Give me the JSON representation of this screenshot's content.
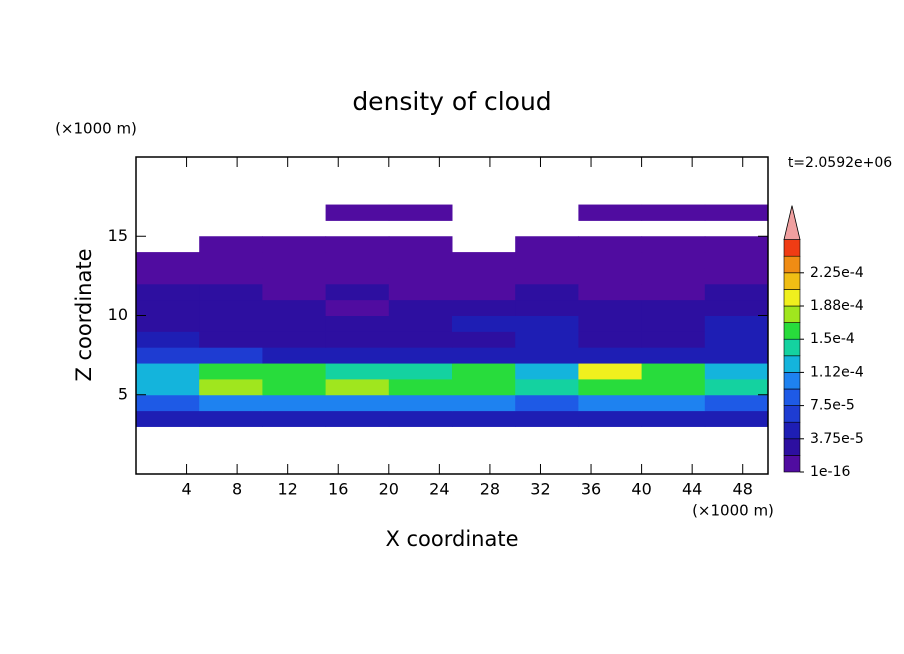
{
  "chart_data": {
    "type": "contour",
    "title": "density of cloud",
    "y_unit_label": "(×1000 m)",
    "x_unit_label": "(×1000 m)",
    "time_label": "t=2.0592e+06",
    "xlabel": "X coordinate",
    "ylabel": "Z coordinate",
    "xlim": [
      0,
      50
    ],
    "ylim": [
      0,
      20
    ],
    "xticks": [
      4,
      8,
      12,
      16,
      20,
      24,
      28,
      32,
      36,
      40,
      44,
      48
    ],
    "yticks": [
      5,
      10,
      15
    ],
    "x": [
      2.5,
      7.5,
      12.5,
      17.5,
      22.5,
      27.5,
      32.5,
      37.5,
      42.5,
      47.5
    ],
    "z": [
      3.5,
      4.5,
      5.5,
      6.5,
      7.5,
      8.5,
      9.5,
      10.5,
      11.5,
      12.5,
      13.5,
      14.5,
      15.5,
      16.5
    ],
    "values": [
      [
        4e-05,
        4e-05,
        4e-05,
        4e-05,
        4e-05,
        4e-05,
        4e-05,
        4e-05,
        4e-05,
        4e-05
      ],
      [
        9e-05,
        0.0001,
        0.0001,
        0.0001,
        0.0001,
        0.0001,
        9e-05,
        0.0001,
        0.0001,
        9e-05
      ],
      [
        0.00012,
        0.00017,
        0.00016,
        0.00017,
        0.00015,
        0.00016,
        0.00014,
        0.00016,
        0.00015,
        0.00014
      ],
      [
        0.00012,
        0.00015,
        0.00016,
        0.00014,
        0.00014,
        0.00016,
        0.00013,
        0.00019,
        0.00016,
        0.00013
      ],
      [
        6e-05,
        6e-05,
        4e-05,
        4e-05,
        5e-05,
        4e-05,
        5e-05,
        4e-05,
        4e-05,
        5e-05
      ],
      [
        4e-05,
        3e-05,
        2.5e-05,
        3e-05,
        3e-05,
        3e-05,
        4e-05,
        3e-05,
        3e-05,
        4e-05
      ],
      [
        3e-05,
        3e-05,
        2e-05,
        2e-05,
        2.5e-05,
        4e-05,
        4e-05,
        3e-05,
        3e-05,
        4e-05
      ],
      [
        2.5e-05,
        2e-05,
        2e-05,
        1e-05,
        2e-05,
        2e-05,
        2.5e-05,
        2e-05,
        3e-05,
        3e-05
      ],
      [
        2e-05,
        2e-05,
        8e-06,
        2e-05,
        8e-06,
        8e-06,
        2e-05,
        8e-06,
        1e-05,
        2e-05
      ],
      [
        5e-06,
        5e-06,
        5e-06,
        5e-06,
        5e-06,
        5e-06,
        5e-06,
        5e-06,
        5e-06,
        5e-06
      ],
      [
        5e-06,
        5e-06,
        5e-06,
        5e-06,
        5e-06,
        5e-06,
        5e-06,
        5e-06,
        5e-06,
        5e-06
      ],
      [
        null,
        5e-06,
        5e-06,
        5e-06,
        5e-06,
        null,
        5e-06,
        5e-06,
        5e-06,
        5e-06
      ],
      [
        null,
        null,
        null,
        null,
        null,
        null,
        null,
        null,
        null,
        null
      ],
      [
        null,
        null,
        null,
        5e-06,
        5e-06,
        null,
        null,
        5e-06,
        5e-06,
        5e-06
      ]
    ],
    "levels": [
      1e-16,
      1.875e-05,
      3.75e-05,
      5.625e-05,
      7.5e-05,
      9.375e-05,
      0.0001125,
      0.00013125,
      0.00015,
      0.00016875,
      0.0001875,
      0.00020625,
      0.000225,
      0.00024375
    ],
    "colors": [
      "#500ca0",
      "#2d0fa0",
      "#1e1eb4",
      "#1e3cd2",
      "#1e5ae6",
      "#1e82f0",
      "#14b4dc",
      "#14d2a0",
      "#28dc3c",
      "#a0e61e",
      "#f0f01e",
      "#f0be14",
      "#f08c14",
      "#f03c14"
    ],
    "extend_color": "#f0a0a0",
    "colorbar_ticks": [
      1e-16,
      {
        "value": 3.75e-05,
        "label": "3.75e-5"
      },
      {
        "value": 7.5e-05,
        "label": "7.5e-5"
      },
      {
        "value": 0.0001125,
        "label": "1.12e-4"
      },
      {
        "value": 0.00015,
        "label": "1.5e-4"
      },
      {
        "value": 0.0001875,
        "label": "1.88e-4"
      },
      {
        "value": 0.000225,
        "label": "2.25e-4"
      }
    ]
  }
}
